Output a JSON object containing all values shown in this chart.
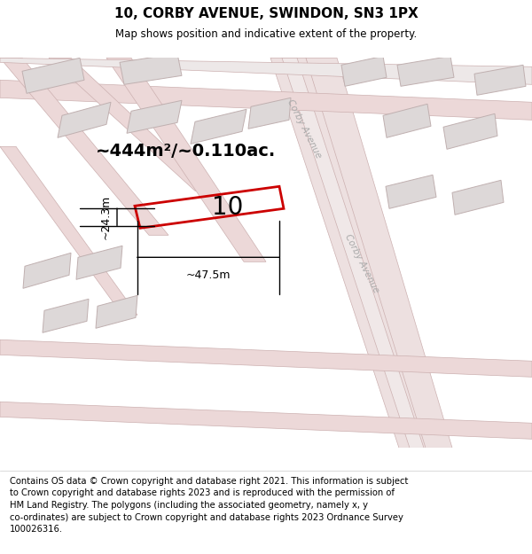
{
  "title": "10, CORBY AVENUE, SWINDON, SN3 1PX",
  "subtitle": "Map shows position and indicative extent of the property.",
  "footer": "Contains OS data © Crown copyright and database right 2021. This information is subject\nto Crown copyright and database rights 2023 and is reproduced with the permission of\nHM Land Registry. The polygons (including the associated geometry, namely x, y\nco-ordinates) are subject to Crown copyright and database rights 2023 Ordnance Survey\n100026316.",
  "bg_color": "#f5eeee",
  "road_color": "#ecd8d8",
  "road_edge": "#ccb0b0",
  "building_fill": "#ddd8d8",
  "building_edge": "#c0b0b0",
  "plot_color": "#cc0000",
  "plot_label": "10",
  "area_label": "~444m²/~0.110ac.",
  "width_label": "~47.5m",
  "height_label": "~24.3m",
  "street_label": "Corby Avenue",
  "title_fontsize": 11,
  "subtitle_fontsize": 8.5,
  "footer_fontsize": 7.2,
  "figsize": [
    6.0,
    6.25
  ],
  "dpi": 100
}
